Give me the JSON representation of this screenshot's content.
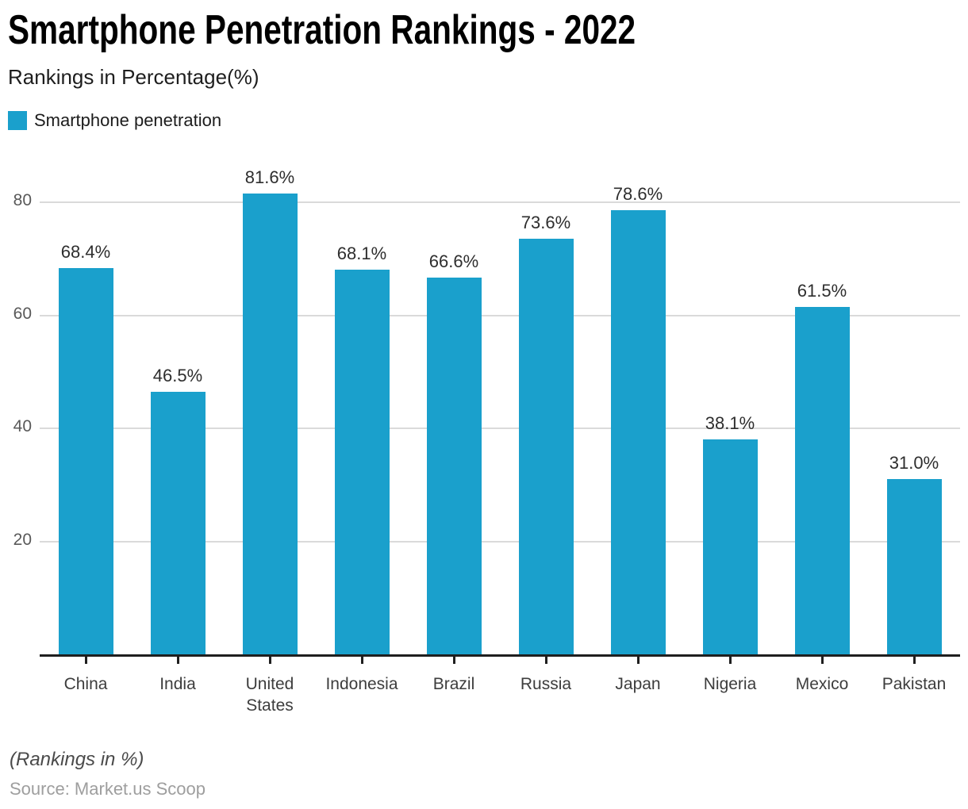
{
  "header": {
    "title": "Smartphone Penetration Rankings - 2022",
    "subtitle": "Rankings in Percentage(%)"
  },
  "legend": {
    "label": "Smartphone penetration",
    "swatch_color": "#1AA0CC"
  },
  "chart_data": {
    "type": "bar",
    "title": "Smartphone Penetration Rankings - 2022",
    "series_name": "Smartphone penetration",
    "categories": [
      "China",
      "India",
      "United States",
      "Indonesia",
      "Brazil",
      "Russia",
      "Japan",
      "Nigeria",
      "Mexico",
      "Pakistan"
    ],
    "values": [
      68.4,
      46.5,
      81.6,
      68.1,
      66.6,
      73.6,
      78.6,
      38.1,
      61.5,
      31.0
    ],
    "value_labels": [
      "68.4%",
      "46.5%",
      "81.6%",
      "68.1%",
      "66.6%",
      "73.6%",
      "78.6%",
      "38.1%",
      "61.5%",
      "31.0%"
    ],
    "xlabel": "",
    "ylabel": "",
    "ylim": [
      0,
      88
    ],
    "yticks": [
      20,
      40,
      60,
      80
    ],
    "bar_color": "#1AA0CC",
    "grid": "horizontal",
    "legend_position": "top-left"
  },
  "footer": {
    "note": "(Rankings in %)",
    "source": "Source: Market.us Scoop"
  }
}
